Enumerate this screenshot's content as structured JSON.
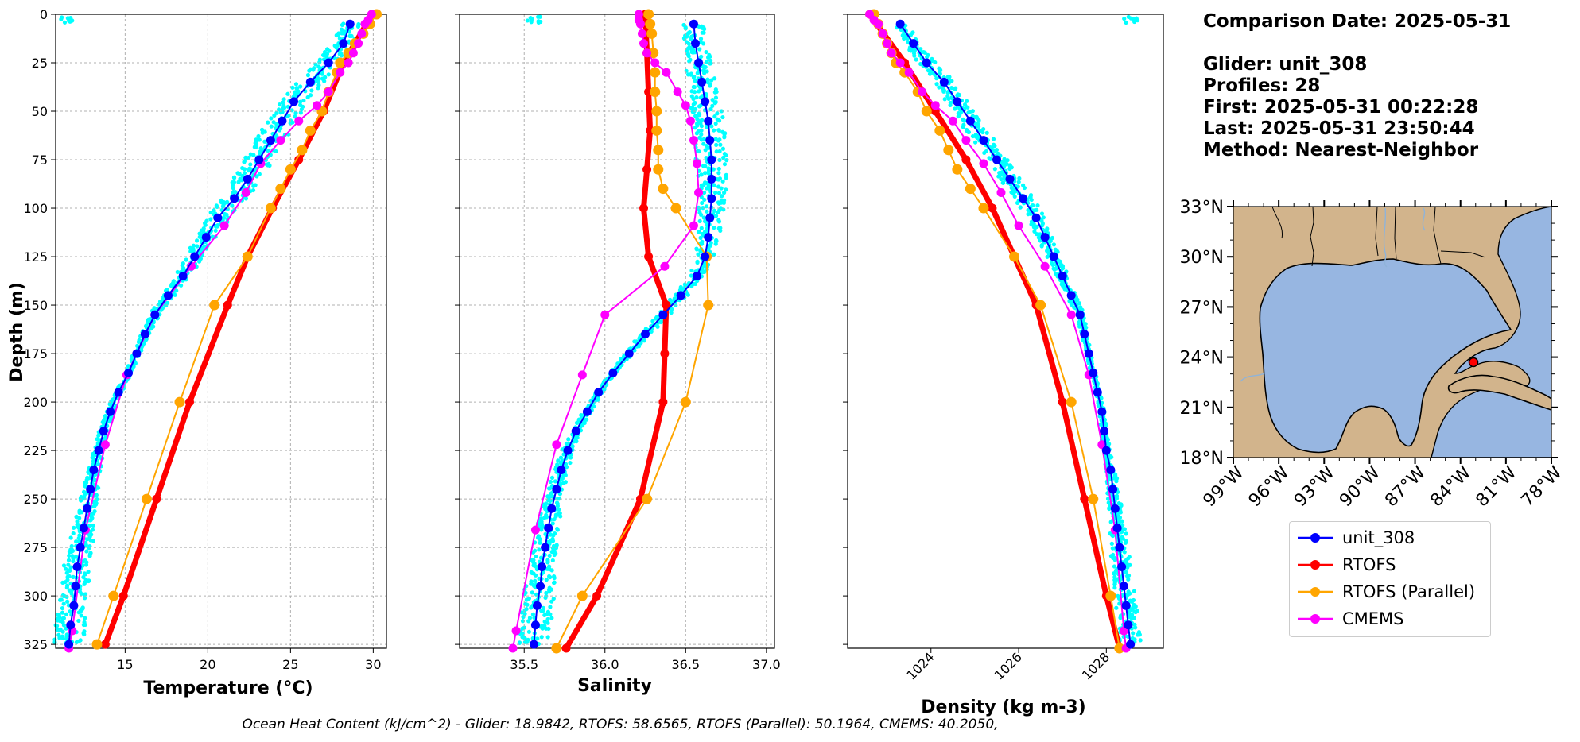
{
  "info": {
    "comparison": "Comparison Date: 2025-05-31",
    "glider": "Glider: unit_308",
    "profiles": "Profiles: 28",
    "first": "First: 2025-05-31 00:22:28",
    "last": "Last: 2025-05-31 23:50:44",
    "method": "Method: Nearest-Neighbor"
  },
  "footer": "Ocean Heat Content (kJ/cm^2) - Glider: 18.9842,  RTOFS: 58.6565,  RTOFS (Parallel): 50.1964,  CMEMS: 40.2050,",
  "colors": {
    "glider": "#0000ff",
    "rtofs": "#ff0000",
    "parallel": "#ffa500",
    "cmems": "#ff00ff",
    "raw": "#00ffff",
    "ocean": "#97b6e1",
    "land": "#d2b48c"
  },
  "legend": [
    {
      "name": "unit_308",
      "color": "#0000ff"
    },
    {
      "name": "RTOFS",
      "color": "#ff0000"
    },
    {
      "name": "RTOFS (Parallel)",
      "color": "#ffa500"
    },
    {
      "name": "CMEMS",
      "color": "#ff00ff"
    }
  ],
  "map": {
    "lat_labels": [
      "33°N",
      "30°N",
      "27°N",
      "24°N",
      "21°N",
      "18°N"
    ],
    "lon_labels": [
      "99°W",
      "96°W",
      "93°W",
      "90°W",
      "87°W",
      "84°W",
      "81°W",
      "78°W"
    ],
    "glider_position": {
      "lon": -84.7,
      "lat": 24.0
    }
  },
  "chart_data": [
    {
      "type": "line",
      "xlabel": "Temperature (°C)",
      "ylabel": "Depth (m)",
      "xlim": [
        10.8,
        30.8
      ],
      "ylim": [
        327,
        0
      ],
      "xticks": [
        15,
        20,
        25,
        30
      ],
      "yticks": [
        0,
        25,
        50,
        75,
        100,
        125,
        150,
        175,
        200,
        225,
        250,
        275,
        300,
        325
      ],
      "grid": true,
      "series": [
        {
          "name": "unit_308",
          "depth": [
            5,
            15,
            25,
            35,
            45,
            55,
            65,
            75,
            85,
            95,
            105,
            115,
            125,
            135,
            145,
            155,
            165,
            175,
            185,
            195,
            205,
            215,
            225,
            235,
            245,
            255,
            265,
            275,
            285,
            295,
            305,
            315,
            325
          ],
          "values": [
            28.6,
            28.2,
            27.3,
            26.2,
            25.2,
            24.5,
            23.8,
            23.1,
            22.4,
            21.6,
            20.6,
            19.9,
            19.2,
            18.5,
            17.6,
            16.8,
            16.2,
            15.7,
            15.2,
            14.6,
            14.1,
            13.7,
            13.4,
            13.1,
            12.9,
            12.7,
            12.5,
            12.3,
            12.1,
            12.0,
            11.9,
            11.7,
            11.6
          ]
        },
        {
          "name": "RTOFS",
          "depth": [
            0,
            5,
            25,
            50,
            75,
            100,
            125,
            150,
            200,
            250,
            300,
            325
          ],
          "values": [
            30.0,
            29.6,
            28.2,
            27.0,
            25.5,
            23.9,
            22.4,
            21.2,
            18.9,
            16.9,
            14.9,
            13.8
          ]
        },
        {
          "name": "RTOFS (Parallel)",
          "depth": [
            0,
            5,
            10,
            15,
            20,
            25,
            30,
            40,
            50,
            60,
            70,
            80,
            90,
            100,
            125,
            150,
            200,
            250,
            300,
            325
          ],
          "values": [
            30.2,
            29.8,
            29.4,
            28.9,
            28.5,
            28.0,
            27.8,
            27.3,
            26.9,
            26.2,
            25.7,
            25.0,
            24.4,
            23.8,
            22.4,
            20.4,
            18.3,
            16.3,
            14.3,
            13.3
          ]
        },
        {
          "name": "CMEMS",
          "depth": [
            0,
            3,
            5,
            10,
            15,
            20,
            25,
            30,
            40,
            47,
            55,
            65,
            77,
            92,
            109,
            130,
            155,
            186,
            222,
            266,
            318,
            327
          ],
          "values": [
            29.9,
            29.7,
            29.5,
            29.3,
            29.1,
            28.8,
            28.5,
            28.0,
            27.3,
            26.6,
            25.5,
            24.4,
            23.2,
            22.3,
            21.0,
            19.0,
            16.8,
            15.1,
            13.8,
            12.6,
            11.8,
            11.6
          ]
        }
      ]
    },
    {
      "type": "line",
      "xlabel": "Salinity",
      "xlim": [
        35.1,
        37.05
      ],
      "ylim": [
        327,
        0
      ],
      "xticks": [
        35.5,
        36.0,
        36.5,
        37.0
      ],
      "tick_labels": [
        "35.5",
        "36.0",
        "36.5",
        "37.0"
      ],
      "grid": true,
      "series": [
        {
          "name": "unit_308",
          "depth": [
            5,
            15,
            25,
            35,
            45,
            55,
            65,
            75,
            85,
            95,
            105,
            115,
            125,
            135,
            145,
            155,
            165,
            175,
            185,
            195,
            205,
            215,
            225,
            235,
            245,
            255,
            265,
            275,
            285,
            295,
            305,
            315,
            325
          ],
          "values": [
            36.55,
            36.56,
            36.58,
            36.6,
            36.62,
            36.64,
            36.65,
            36.66,
            36.66,
            36.66,
            36.65,
            36.64,
            36.62,
            36.57,
            36.47,
            36.36,
            36.25,
            36.15,
            36.05,
            35.96,
            35.89,
            35.82,
            35.77,
            35.73,
            35.7,
            35.67,
            35.65,
            35.63,
            35.61,
            35.6,
            35.58,
            35.57,
            35.56
          ]
        },
        {
          "name": "RTOFS",
          "depth": [
            0,
            20,
            40,
            60,
            80,
            100,
            125,
            150,
            175,
            200,
            250,
            300,
            327
          ],
          "values": [
            36.25,
            36.26,
            36.27,
            36.28,
            36.26,
            36.24,
            36.27,
            36.38,
            36.37,
            36.36,
            36.22,
            35.95,
            35.76
          ]
        },
        {
          "name": "RTOFS (Parallel)",
          "depth": [
            0,
            5,
            10,
            20,
            30,
            40,
            50,
            60,
            70,
            80,
            90,
            100,
            125,
            150,
            200,
            250,
            300,
            327
          ],
          "values": [
            36.27,
            36.28,
            36.29,
            36.3,
            36.31,
            36.31,
            36.32,
            36.32,
            36.33,
            36.33,
            36.36,
            36.44,
            36.63,
            36.64,
            36.5,
            36.26,
            35.86,
            35.7
          ]
        },
        {
          "name": "CMEMS",
          "depth": [
            0,
            3,
            5,
            10,
            15,
            20,
            25,
            30,
            40,
            47,
            55,
            65,
            77,
            92,
            109,
            130,
            155,
            186,
            222,
            266,
            318,
            327
          ],
          "values": [
            36.21,
            36.21,
            36.22,
            36.23,
            36.24,
            36.26,
            36.31,
            36.38,
            36.45,
            36.5,
            36.53,
            36.55,
            36.57,
            36.58,
            36.55,
            36.37,
            36.0,
            35.86,
            35.7,
            35.57,
            35.45,
            35.43
          ]
        }
      ]
    },
    {
      "type": "line",
      "xlabel": "Density (kg m-3)",
      "xlim": [
        1022.1,
        1029.3
      ],
      "ylim": [
        327,
        0
      ],
      "xticks": [
        1024,
        1026,
        1028
      ],
      "grid": false,
      "series": [
        {
          "name": "unit_308",
          "depth": [
            5,
            15,
            25,
            35,
            45,
            55,
            65,
            75,
            85,
            95,
            105,
            115,
            125,
            135,
            145,
            155,
            165,
            175,
            185,
            195,
            205,
            215,
            225,
            235,
            245,
            255,
            265,
            275,
            285,
            295,
            305,
            315,
            325
          ],
          "values": [
            1023.3,
            1023.6,
            1023.9,
            1024.3,
            1024.6,
            1024.9,
            1025.2,
            1025.5,
            1025.8,
            1026.1,
            1026.4,
            1026.6,
            1026.8,
            1027.0,
            1027.2,
            1027.4,
            1027.5,
            1027.6,
            1027.7,
            1027.8,
            1027.9,
            1027.95,
            1028.0,
            1028.1,
            1028.15,
            1028.2,
            1028.25,
            1028.3,
            1028.35,
            1028.4,
            1028.45,
            1028.5,
            1028.55
          ]
        },
        {
          "name": "RTOFS",
          "depth": [
            0,
            25,
            50,
            75,
            100,
            125,
            150,
            200,
            250,
            300,
            327
          ],
          "values": [
            1022.6,
            1023.4,
            1024.1,
            1024.8,
            1025.4,
            1025.9,
            1026.4,
            1027.0,
            1027.5,
            1028.0,
            1028.3
          ]
        },
        {
          "name": "RTOFS (Parallel)",
          "depth": [
            0,
            5,
            10,
            15,
            20,
            25,
            30,
            40,
            50,
            60,
            70,
            80,
            90,
            100,
            125,
            150,
            200,
            250,
            300,
            327
          ],
          "values": [
            1022.7,
            1022.8,
            1022.9,
            1023.0,
            1023.1,
            1023.2,
            1023.4,
            1023.7,
            1023.9,
            1024.2,
            1024.4,
            1024.6,
            1024.9,
            1025.2,
            1025.9,
            1026.5,
            1027.2,
            1027.7,
            1028.1,
            1028.3
          ]
        },
        {
          "name": "CMEMS",
          "depth": [
            0,
            3,
            5,
            10,
            15,
            20,
            25,
            30,
            40,
            47,
            55,
            65,
            77,
            92,
            109,
            130,
            155,
            186,
            222,
            266,
            318,
            327
          ],
          "values": [
            1022.6,
            1022.7,
            1022.8,
            1022.9,
            1023.0,
            1023.1,
            1023.3,
            1023.5,
            1023.8,
            1024.1,
            1024.5,
            1024.8,
            1025.2,
            1025.6,
            1026.0,
            1026.6,
            1027.2,
            1027.6,
            1027.9,
            1028.2,
            1028.4,
            1028.45
          ]
        }
      ]
    }
  ]
}
